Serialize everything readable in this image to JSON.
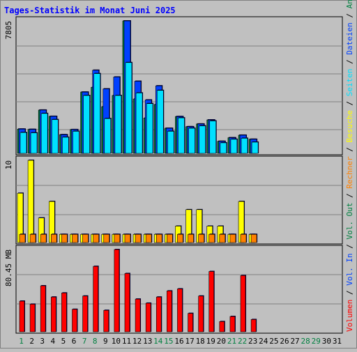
{
  "title": "Tages-Statistik im Monat Juni 2025",
  "colors": {
    "background": "#c0c0c0",
    "title": "#0000ff",
    "anfragen": "#008040",
    "dateien": "#0040ff",
    "seiten": "#00e0ff",
    "besuche": "#ffff00",
    "rechner": "#ff8000",
    "volumen": "#ff0000",
    "weekday_label": "#000000",
    "weekend_label": "#008040",
    "frame": "#000000",
    "grid": "#808080"
  },
  "chart_data": [
    {
      "type": "bar",
      "panel": "hits",
      "ymax_label": "7805",
      "ylim": [
        0,
        7805
      ],
      "categories": [
        "1",
        "2",
        "3",
        "4",
        "5",
        "6",
        "7",
        "8",
        "9",
        "10",
        "11",
        "12",
        "13",
        "14",
        "15",
        "16",
        "17",
        "18",
        "19",
        "20",
        "21",
        "22",
        "23",
        "24",
        "25",
        "26",
        "27",
        "28",
        "29",
        "30",
        "31"
      ],
      "series": [
        {
          "name": "Anfragen",
          "color": "#008040",
          "values": [
            1430,
            1410,
            2550,
            2180,
            1100,
            1400,
            3610,
            3890,
            2750,
            3410,
            7805,
            3200,
            2080,
            2880,
            1480,
            2170,
            1570,
            1730,
            1970,
            710,
            920,
            1070,
            830,
            null,
            null,
            null,
            null,
            null,
            null,
            null,
            null
          ]
        },
        {
          "name": "Dateien",
          "color": "#0040ff",
          "values": [
            1430,
            1410,
            2550,
            2180,
            1100,
            1400,
            3610,
            4900,
            3800,
            4500,
            7805,
            4250,
            3150,
            3980,
            1480,
            2170,
            1570,
            1730,
            1970,
            710,
            920,
            1070,
            830,
            null,
            null,
            null,
            null,
            null,
            null,
            null,
            null
          ]
        },
        {
          "name": "Seiten",
          "color": "#00e0ff",
          "values": [
            1230,
            1210,
            2350,
            1990,
            950,
            1300,
            3410,
            4700,
            2050,
            3410,
            5350,
            3560,
            2930,
            3710,
            1300,
            2090,
            1480,
            1620,
            1910,
            620,
            830,
            890,
            660,
            null,
            null,
            null,
            null,
            null,
            null,
            null,
            null
          ]
        }
      ],
      "legend": [
        "Anfragen",
        "Dateien",
        "Seiten"
      ]
    },
    {
      "type": "bar",
      "panel": "visits",
      "ymax_label": "10",
      "ylim": [
        0,
        10
      ],
      "categories": [
        "1",
        "2",
        "3",
        "4",
        "5",
        "6",
        "7",
        "8",
        "9",
        "10",
        "11",
        "12",
        "13",
        "14",
        "15",
        "16",
        "17",
        "18",
        "19",
        "20",
        "21",
        "22",
        "23",
        "24",
        "25",
        "26",
        "27",
        "28",
        "29",
        "30",
        "31"
      ],
      "series": [
        {
          "name": "Besuche",
          "color": "#ffff00",
          "values": [
            6,
            10,
            3,
            5,
            1,
            1,
            1,
            1,
            1,
            1,
            1,
            1,
            1,
            1,
            1,
            2,
            4,
            4,
            2,
            2,
            1,
            5,
            1,
            null,
            null,
            null,
            null,
            null,
            null,
            null,
            null
          ]
        },
        {
          "name": "Rechner",
          "color": "#ff8000",
          "values": [
            1,
            1,
            1,
            1,
            1,
            1,
            1,
            1,
            1,
            1,
            1,
            1,
            1,
            1,
            1,
            1,
            1,
            1,
            1,
            1,
            1,
            1,
            1,
            null,
            null,
            null,
            null,
            null,
            null,
            null,
            null
          ]
        }
      ],
      "legend": [
        "Besuche",
        "Rechner"
      ]
    },
    {
      "type": "bar",
      "panel": "volume",
      "ymax_label": "80.45 MB",
      "ylim": [
        0,
        80.45
      ],
      "categories": [
        "1",
        "2",
        "3",
        "4",
        "5",
        "6",
        "7",
        "8",
        "9",
        "10",
        "11",
        "12",
        "13",
        "14",
        "15",
        "16",
        "17",
        "18",
        "19",
        "20",
        "21",
        "22",
        "23",
        "24",
        "25",
        "26",
        "27",
        "28",
        "29",
        "30",
        "31"
      ],
      "series": [
        {
          "name": "Volumen",
          "color": "#ff0000",
          "values": [
            30,
            27,
            45,
            34,
            38,
            22,
            35,
            64,
            21,
            80.45,
            57,
            32,
            28,
            34,
            40,
            42,
            18,
            35,
            59,
            10,
            15,
            55,
            12,
            null,
            null,
            null,
            null,
            null,
            null,
            null,
            null
          ]
        }
      ],
      "legend": [
        "Volumen"
      ]
    }
  ],
  "x_labels": [
    {
      "day": "1",
      "weekend": true
    },
    {
      "day": "2",
      "weekend": false
    },
    {
      "day": "3",
      "weekend": false
    },
    {
      "day": "4",
      "weekend": false
    },
    {
      "day": "5",
      "weekend": false
    },
    {
      "day": "6",
      "weekend": false
    },
    {
      "day": "7",
      "weekend": true
    },
    {
      "day": "8",
      "weekend": true
    },
    {
      "day": "9",
      "weekend": false
    },
    {
      "day": "10",
      "weekend": false
    },
    {
      "day": "11",
      "weekend": false
    },
    {
      "day": "12",
      "weekend": false
    },
    {
      "day": "13",
      "weekend": false
    },
    {
      "day": "14",
      "weekend": true
    },
    {
      "day": "15",
      "weekend": true
    },
    {
      "day": "16",
      "weekend": false
    },
    {
      "day": "17",
      "weekend": false
    },
    {
      "day": "18",
      "weekend": false
    },
    {
      "day": "19",
      "weekend": false
    },
    {
      "day": "20",
      "weekend": false
    },
    {
      "day": "21",
      "weekend": true
    },
    {
      "day": "22",
      "weekend": true
    },
    {
      "day": "23",
      "weekend": false
    },
    {
      "day": "24",
      "weekend": false
    },
    {
      "day": "25",
      "weekend": false
    },
    {
      "day": "26",
      "weekend": false
    },
    {
      "day": "27",
      "weekend": false
    },
    {
      "day": "28",
      "weekend": true
    },
    {
      "day": "29",
      "weekend": true
    },
    {
      "day": "30",
      "weekend": false
    },
    {
      "day": "31",
      "weekend": false
    }
  ],
  "right_legend": [
    {
      "text": "Volumen",
      "color": "#ff0000"
    },
    {
      "text": " / ",
      "color": "#000000"
    },
    {
      "text": "Vol. In",
      "color": "#0040ff"
    },
    {
      "text": " / ",
      "color": "#000000"
    },
    {
      "text": "Vol. Out",
      "color": "#008040"
    },
    {
      "text": " / ",
      "color": "#000000"
    },
    {
      "text": "Rechner",
      "color": "#ff8000"
    },
    {
      "text": " / ",
      "color": "#000000"
    },
    {
      "text": "Besuche",
      "color": "#ffff00"
    },
    {
      "text": " / ",
      "color": "#000000"
    },
    {
      "text": "Seiten",
      "color": "#00e0ff"
    },
    {
      "text": " / ",
      "color": "#000000"
    },
    {
      "text": "Dateien",
      "color": "#0040ff"
    },
    {
      "text": " / ",
      "color": "#000000"
    },
    {
      "text": "Anfragen",
      "color": "#008040"
    }
  ]
}
